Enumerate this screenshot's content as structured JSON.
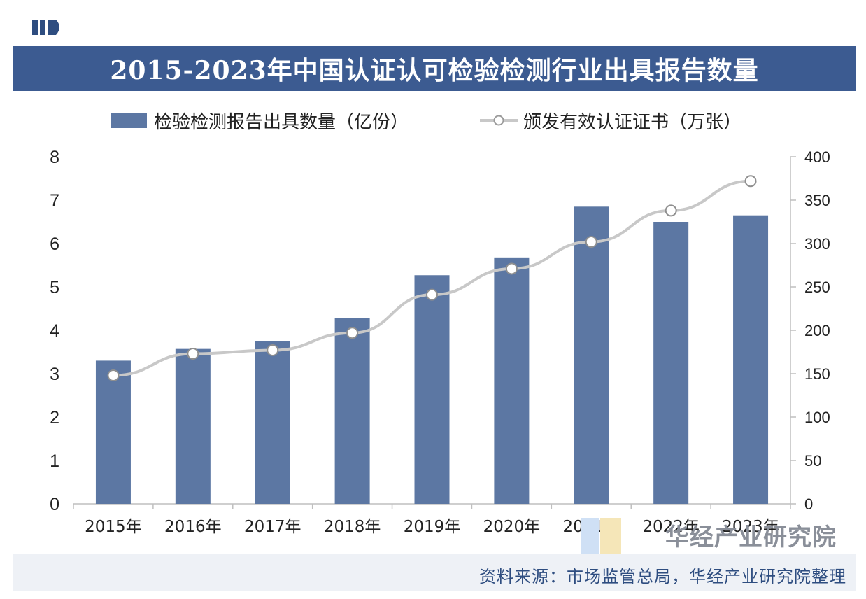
{
  "title": "2015-2023年中国认证认可检验检测行业出具报告数量",
  "source": "资料来源：市场监管总局，华经产业研究院整理",
  "watermark": "华经产业研究院",
  "colors": {
    "bar": "#5c77a3",
    "line": "#c8c8c8",
    "title_bg": "#3c5b91"
  },
  "chart_data": {
    "type": "bar",
    "categories": [
      "2015年",
      "2016年",
      "2017年",
      "2018年",
      "2019年",
      "2020年",
      "2021年",
      "2022年",
      "2023年"
    ],
    "series": [
      {
        "name": "检验检测报告出具数量（亿份）",
        "type": "bar",
        "axis": "left",
        "values": [
          3.3,
          3.57,
          3.75,
          4.28,
          5.27,
          5.68,
          6.85,
          6.5,
          6.65
        ]
      },
      {
        "name": "颁发有效认证证书（万张）",
        "type": "line",
        "axis": "right",
        "values": [
          148,
          173,
          177,
          197,
          241,
          271,
          302,
          338,
          372
        ]
      }
    ],
    "y_left": {
      "min": 0,
      "max": 8,
      "ticks": [
        "0",
        "1",
        "2",
        "3",
        "4",
        "5",
        "6",
        "7",
        "8"
      ]
    },
    "y_right": {
      "min": 0,
      "max": 400,
      "ticks": [
        "0",
        "50",
        "100",
        "150",
        "200",
        "250",
        "300",
        "350",
        "400"
      ]
    },
    "legend_position": "top",
    "grid": false
  }
}
